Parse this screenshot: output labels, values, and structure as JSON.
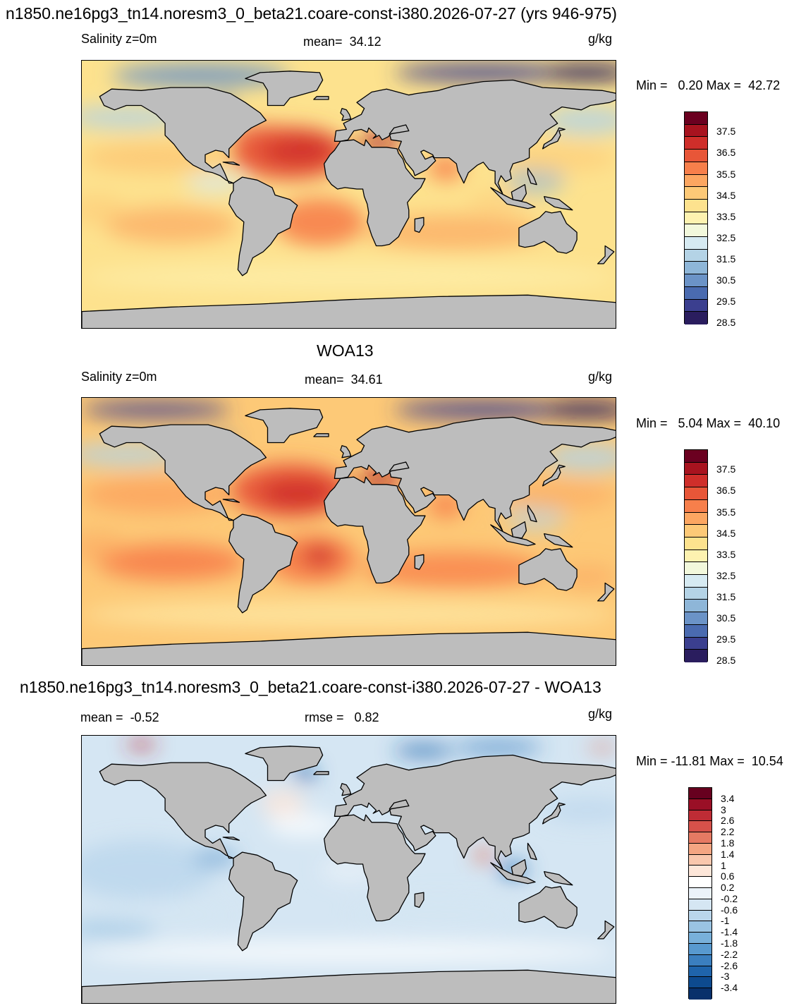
{
  "title_top": "n1850.ne16pg3_tn14.noresm3_0_beta21.coare-const-i380.2026-07-27 (yrs 946-975)",
  "title_mid": "WOA13",
  "title_diff": "n1850.ne16pg3_tn14.noresm3_0_beta21.coare-const-i380.2026-07-27 - WOA13",
  "colors": {
    "land": "#bdbdbd",
    "salinity_scale": [
      "#2a1d5e",
      "#3b3f8f",
      "#4a6bb0",
      "#6b93c7",
      "#8eb6d8",
      "#b4d3e6",
      "#d6eaf2",
      "#f2f8dc",
      "#fdf2b0",
      "#fde28e",
      "#fdc977",
      "#fca661",
      "#f77f4b",
      "#e85638",
      "#cf2e2a",
      "#a8131f",
      "#6b0020"
    ],
    "diff_scale": [
      "#08306b",
      "#0d4a8f",
      "#1f64ab",
      "#3b7fbf",
      "#5899cf",
      "#78b0da",
      "#9ac4e3",
      "#bad6ec",
      "#d5e6f3",
      "#ebf2f9",
      "#ffffff",
      "#fde6d9",
      "#f9c7ad",
      "#f4a582",
      "#e67a63",
      "#d6514a",
      "#bf2c35",
      "#9a0f26",
      "#67001f"
    ]
  },
  "chart_data": [
    {
      "type": "heatmap",
      "variable": "Salinity z=0m",
      "units": "g/kg",
      "mean_label": "mean=",
      "mean_value": "34.12",
      "minmax_label": "Min =   0.20 Max =  42.72",
      "min": 0.2,
      "max": 42.72,
      "colorbar_ticks": [
        "37.5",
        "36.5",
        "35.5",
        "34.5",
        "33.5",
        "32.5",
        "31.5",
        "30.5",
        "29.5",
        "28.5"
      ]
    },
    {
      "type": "heatmap",
      "variable": "Salinity z=0m",
      "units": "g/kg",
      "mean_label": "mean=",
      "mean_value": "34.61",
      "minmax_label": "Min =   5.04 Max =  40.10",
      "min": 5.04,
      "max": 40.1,
      "colorbar_ticks": [
        "37.5",
        "36.5",
        "35.5",
        "34.5",
        "33.5",
        "32.5",
        "31.5",
        "30.5",
        "29.5",
        "28.5"
      ]
    },
    {
      "type": "heatmap",
      "units": "g/kg",
      "mean_label": "mean =",
      "mean_value": "-0.52",
      "rmse_label": "rmse =",
      "rmse_value": "0.82",
      "minmax_label": "Min = -11.81 Max =  10.54",
      "min": -11.81,
      "max": 10.54,
      "colorbar_ticks": [
        "3.4",
        "3",
        "2.6",
        "2.2",
        "1.8",
        "1.4",
        "1",
        "0.6",
        "0.2",
        "-0.2",
        "-0.6",
        "-1",
        "-1.4",
        "-1.8",
        "-2.2",
        "-2.6",
        "-3",
        "-3.4"
      ]
    }
  ]
}
